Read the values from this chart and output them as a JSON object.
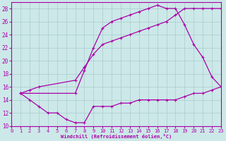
{
  "bg_color": "#cce8e8",
  "grid_color": "#aacccc",
  "line_color": "#aa00aa",
  "xlabel": "Windchill (Refroidissement éolien,°C)",
  "xlim": [
    0,
    23
  ],
  "ylim": [
    10,
    29
  ],
  "yticks": [
    10,
    12,
    14,
    16,
    18,
    20,
    22,
    24,
    26,
    28
  ],
  "xticks": [
    0,
    1,
    2,
    3,
    4,
    5,
    6,
    7,
    8,
    9,
    10,
    11,
    12,
    13,
    14,
    15,
    16,
    17,
    18,
    19,
    20,
    21,
    22,
    23
  ],
  "curve1_x": [
    1,
    2,
    3,
    4,
    5,
    6,
    7,
    8,
    9,
    10,
    11,
    12,
    13,
    14,
    15,
    16,
    17,
    18,
    19,
    20,
    21,
    22,
    23
  ],
  "curve1_y": [
    15,
    14,
    13,
    12,
    12,
    11,
    10.5,
    10.5,
    13,
    13,
    13,
    13.5,
    13.5,
    14,
    14,
    14,
    14,
    14,
    14.5,
    15,
    15,
    15.5,
    16
  ],
  "curve2_x": [
    1,
    2,
    3,
    7,
    8,
    9,
    10,
    11,
    12,
    13,
    14,
    15,
    16,
    17,
    18,
    19,
    20,
    21,
    22,
    23
  ],
  "curve2_y": [
    15,
    15.5,
    16,
    17,
    19,
    21,
    22.5,
    23,
    23.5,
    24,
    24.5,
    25,
    25.5,
    26,
    27,
    28,
    28,
    28,
    28,
    28
  ],
  "curve3_x": [
    1,
    7,
    8,
    9,
    10,
    11,
    12,
    13,
    14,
    15,
    16,
    17,
    18,
    19,
    20,
    21,
    22,
    23
  ],
  "curve3_y": [
    15,
    15,
    18.5,
    22,
    25,
    26,
    26.5,
    27,
    27.5,
    28,
    28.5,
    28,
    28,
    25.5,
    22.5,
    20.5,
    17.5,
    16
  ]
}
